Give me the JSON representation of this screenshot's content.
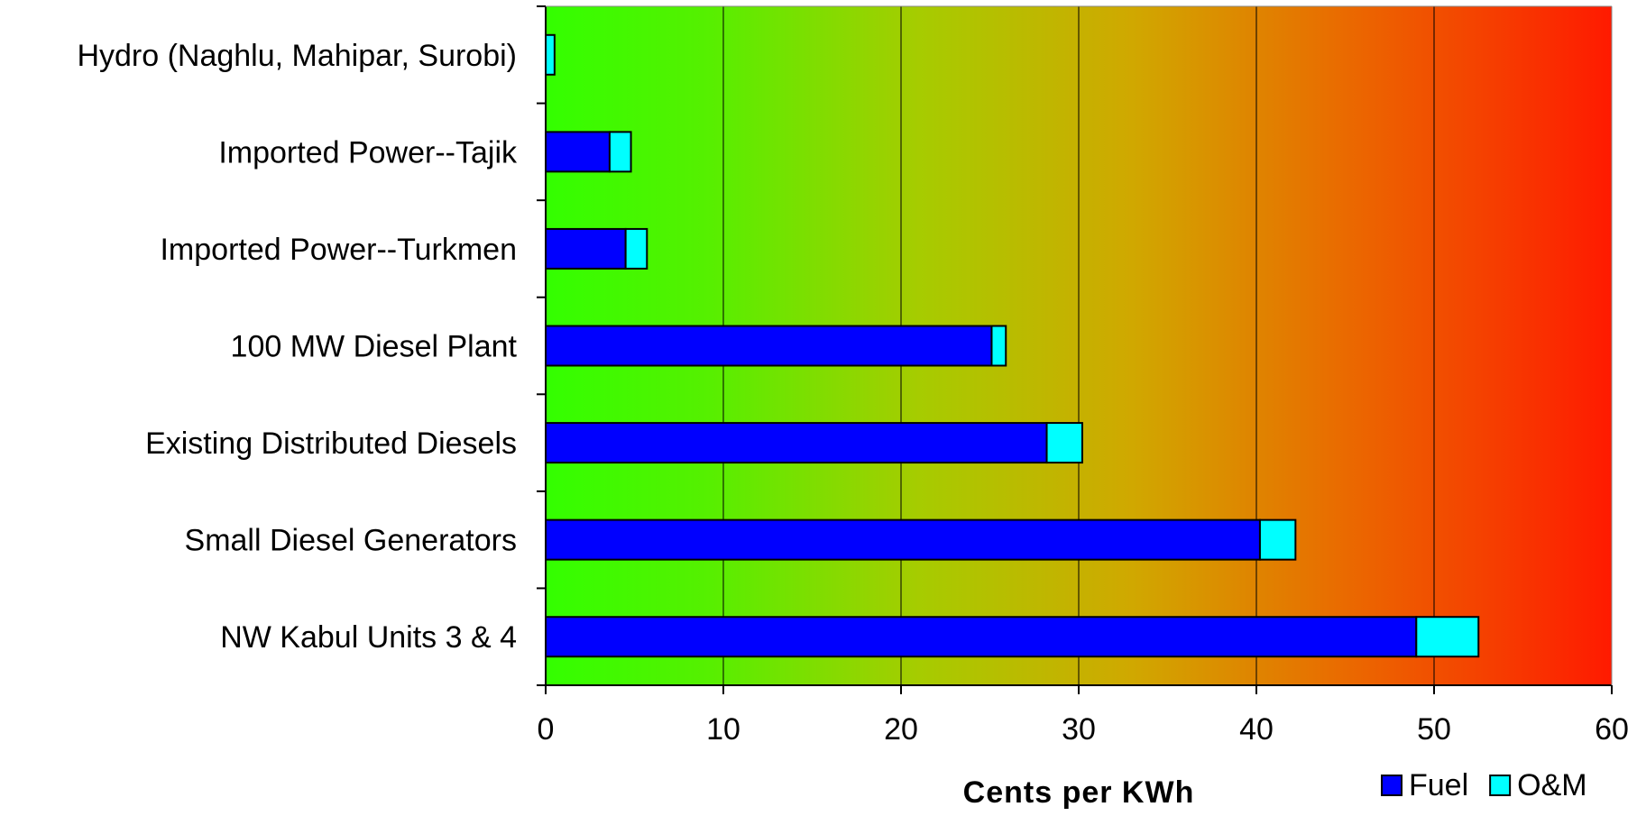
{
  "chart_data": {
    "type": "bar",
    "orientation": "horizontal",
    "stacked": true,
    "categories": [
      "Hydro (Naghlu, Mahipar, Surobi)",
      "Imported Power--Tajik",
      "Imported Power--Turkmen",
      "100 MW Diesel Plant",
      "Existing Distributed Diesels",
      "Small Diesel Generators",
      "NW Kabul Units 3 & 4"
    ],
    "series": [
      {
        "name": "Fuel",
        "color": "#0000ff",
        "values": [
          0,
          3.6,
          4.5,
          25.1,
          28.2,
          40.2,
          49.0
        ]
      },
      {
        "name": "O&M",
        "color": "#00ffff",
        "values": [
          0.5,
          1.2,
          1.2,
          0.8,
          2.0,
          2.0,
          3.5
        ]
      }
    ],
    "xlabel": "Cents per KWh",
    "xlim": [
      0,
      60
    ],
    "xticks": [
      "0",
      "10",
      "20",
      "30",
      "40",
      "50",
      "60"
    ],
    "grid": "vertical",
    "background": "gradient green to red",
    "legend_position": "bottom-right"
  }
}
